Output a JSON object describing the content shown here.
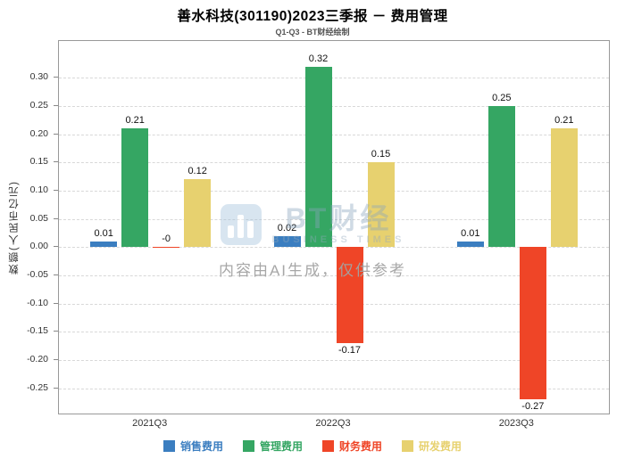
{
  "title": "善水科技(301190)2023三季报 － 费用管理",
  "subtitle": "Q1-Q3 - BT财经绘制",
  "y_axis_title": "数额(人民币亿元)",
  "watermark": {
    "brand": "BT财经",
    "brand_sub": "BUSINESS TIMES",
    "disclaimer": "内容由AI生成，仅供参考"
  },
  "chart_data": {
    "type": "bar",
    "title": "善水科技(301190)2023三季报 － 费用管理",
    "subtitle": "Q1-Q3 - BT财经绘制",
    "xlabel": "",
    "ylabel": "数额(人民币亿元)",
    "categories": [
      "2021Q3",
      "2022Q3",
      "2023Q3"
    ],
    "series": [
      {
        "name": "销售费用",
        "color": "#3B7EC0",
        "values": [
          0.01,
          0.02,
          0.01
        ],
        "value_labels": [
          "0.01",
          "0.02",
          "0.01"
        ]
      },
      {
        "name": "管理费用",
        "color": "#35A663",
        "values": [
          0.21,
          0.32,
          0.25
        ],
        "value_labels": [
          "0.21",
          "0.32",
          "0.25"
        ]
      },
      {
        "name": "财务费用",
        "color": "#EF4527",
        "values": [
          0,
          -0.17,
          -0.27
        ],
        "value_labels": [
          "-0",
          "-0.17",
          "-0.27"
        ]
      },
      {
        "name": "研发费用",
        "color": "#E7D16F",
        "values": [
          0.12,
          0.15,
          0.21
        ],
        "value_labels": [
          "0.12",
          "0.15",
          "0.21"
        ]
      }
    ],
    "ylim": [
      -0.295,
      0.365
    ],
    "yticks": [
      {
        "value": 0.3,
        "label": "0.30"
      },
      {
        "value": 0.25,
        "label": "0.25"
      },
      {
        "value": 0.2,
        "label": "0.20"
      },
      {
        "value": 0.15,
        "label": "0.15"
      },
      {
        "value": 0.1,
        "label": "0.10"
      },
      {
        "value": 0.05,
        "label": "0.05"
      },
      {
        "value": 0.0,
        "label": "0.00"
      },
      {
        "value": -0.05,
        "label": "-0.05"
      },
      {
        "value": -0.1,
        "label": "-0.10"
      },
      {
        "value": -0.15,
        "label": "-0.15"
      },
      {
        "value": -0.2,
        "label": "-0.20"
      },
      {
        "value": -0.25,
        "label": "-0.25"
      }
    ],
    "grid": "dashed-horizontal",
    "legend_position": "bottom"
  }
}
